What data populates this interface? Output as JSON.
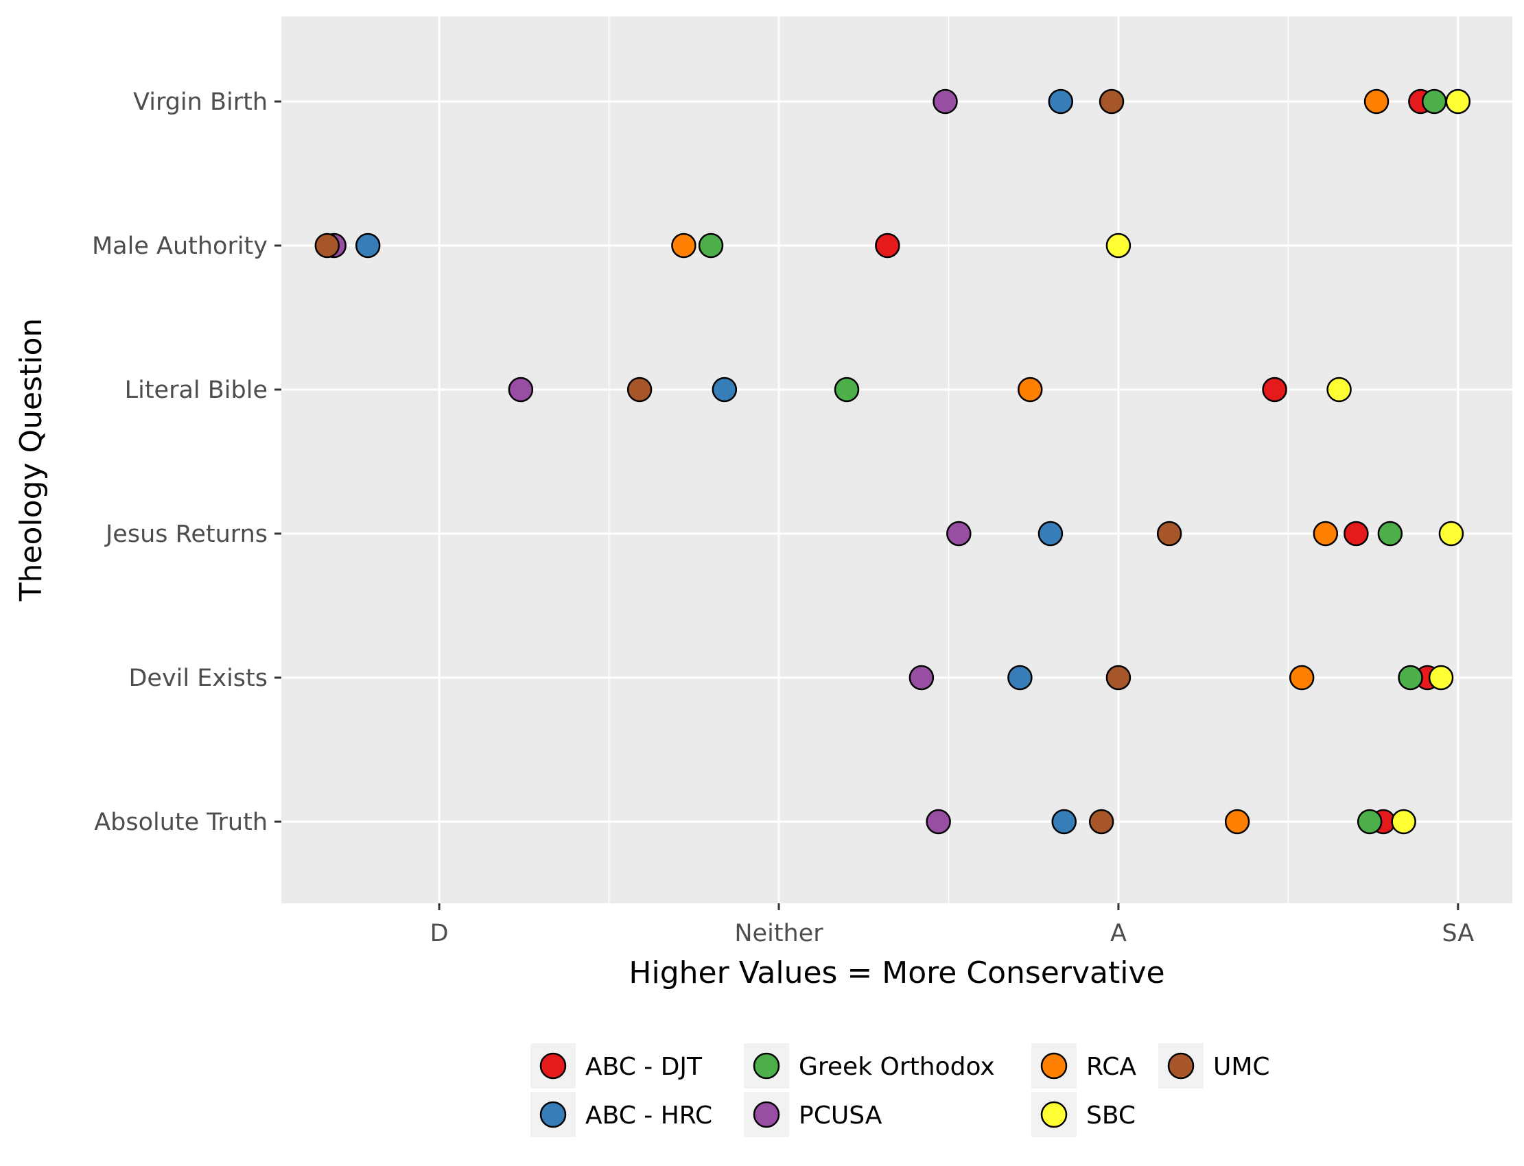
{
  "chart_data": {
    "type": "scatter",
    "xlabel": "Higher Values = More Conservative",
    "ylabel": "Theology Question",
    "x_ticks": [
      {
        "label": "D",
        "value": 2
      },
      {
        "label": "Neither",
        "value": 3
      },
      {
        "label": "A",
        "value": 4
      },
      {
        "label": "SA",
        "value": 5
      }
    ],
    "xlim": [
      1.535,
      5.16
    ],
    "categories": [
      "Virgin Birth",
      "Male Authority",
      "Literal Bible",
      "Jesus Returns",
      "Devil Exists",
      "Absolute Truth"
    ],
    "grid": true,
    "legend_position": "bottom",
    "series": [
      {
        "name": "ABC - DJT",
        "color": "#E41A1C",
        "values": [
          4.89,
          3.32,
          4.46,
          4.7,
          4.91,
          4.78
        ]
      },
      {
        "name": "ABC - HRC",
        "color": "#377EB8",
        "values": [
          3.83,
          1.79,
          2.84,
          3.8,
          3.71,
          3.84
        ]
      },
      {
        "name": "Greek Orthodox",
        "color": "#4DAF4A",
        "values": [
          4.93,
          2.8,
          3.2,
          4.8,
          4.86,
          4.74
        ]
      },
      {
        "name": "PCUSA",
        "color": "#984EA3",
        "values": [
          3.49,
          1.69,
          2.24,
          3.53,
          3.42,
          3.47
        ]
      },
      {
        "name": "RCA",
        "color": "#FF7F00",
        "values": [
          4.76,
          2.72,
          3.74,
          4.61,
          4.54,
          4.35
        ]
      },
      {
        "name": "SBC",
        "color": "#FFFF33",
        "values": [
          5.0,
          4.0,
          4.65,
          4.98,
          4.95,
          4.84
        ]
      },
      {
        "name": "UMC",
        "color": "#A65628",
        "values": [
          3.98,
          1.67,
          2.59,
          4.15,
          4.0,
          3.95
        ]
      }
    ]
  }
}
